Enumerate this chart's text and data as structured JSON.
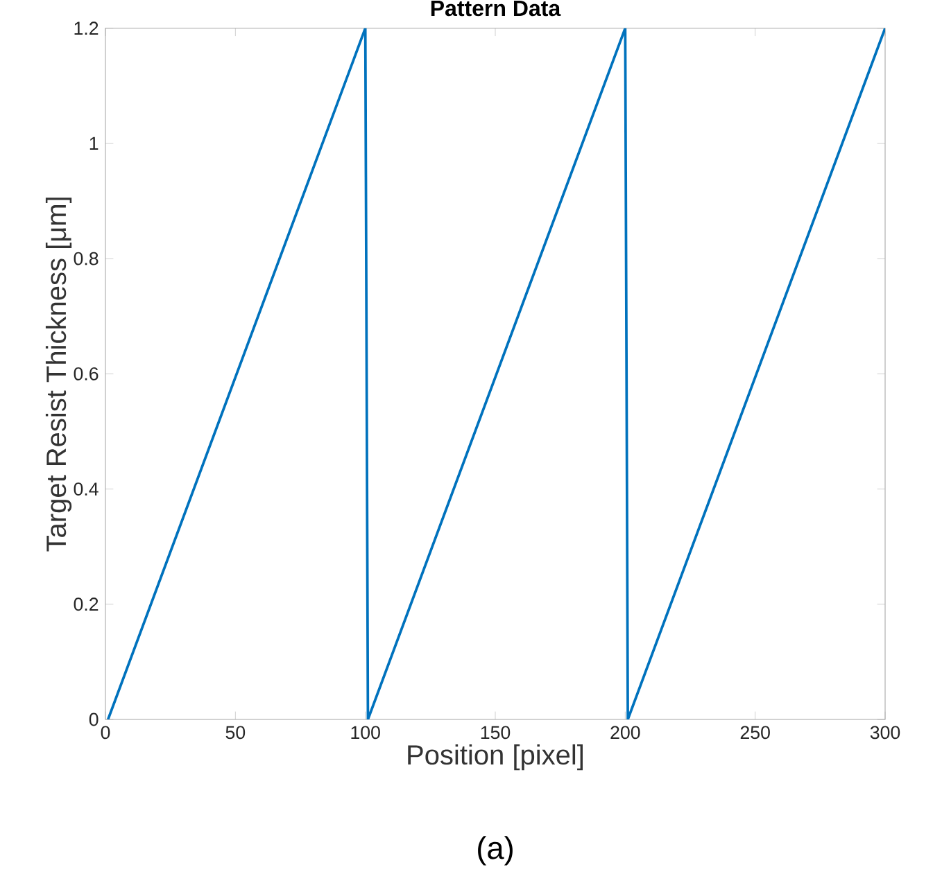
{
  "chart_data": {
    "type": "line",
    "title": "Pattern Data",
    "xlabel": "Position [pixel]",
    "ylabel": "Target Resist Thickness [μm]",
    "annotations": [
      "(a)"
    ],
    "series": [
      {
        "color": "#0072bd",
        "x": [
          1,
          100,
          101,
          200,
          201,
          300
        ],
        "values": [
          0,
          1.2,
          0,
          1.2,
          0,
          1.2
        ]
      }
    ],
    "xlim": [
      0,
      300
    ],
    "ylim": [
      0,
      1.2
    ],
    "xticks": [
      0,
      50,
      100,
      150,
      200,
      250,
      300
    ],
    "yticks": [
      0,
      0.2,
      0.4,
      0.6,
      0.8,
      1,
      1.2
    ],
    "grid": false,
    "legend": false,
    "marker": "none",
    "line_style": "solid"
  }
}
